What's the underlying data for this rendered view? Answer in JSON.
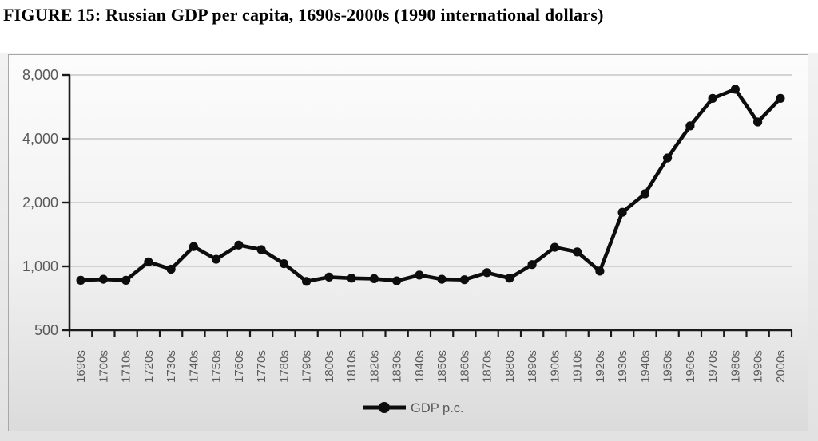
{
  "title": "FIGURE 15: Russian GDP per capita, 1690s-2000s (1990 international dollars)",
  "chart_data": {
    "type": "line",
    "title": "FIGURE 15: Russian GDP per capita, 1690s-2000s (1990 international dollars)",
    "xlabel": "",
    "ylabel": "",
    "y_scale": "log2",
    "ylim": [
      500,
      8000
    ],
    "y_ticks": [
      500,
      1000,
      2000,
      4000,
      8000
    ],
    "y_tick_labels": [
      "500",
      "1,000",
      "2,000",
      "4,000",
      "8,000"
    ],
    "grid": "horizontal",
    "legend_position": "bottom-center",
    "categories": [
      "1690s",
      "1700s",
      "1710s",
      "1720s",
      "1730s",
      "1740s",
      "1750s",
      "1760s",
      "1770s",
      "1780s",
      "1790s",
      "1800s",
      "1810s",
      "1820s",
      "1830s",
      "1840s",
      "1850s",
      "1860s",
      "1870s",
      "1880s",
      "1890s",
      "1900s",
      "1910s",
      "1920s",
      "1930s",
      "1940s",
      "1950s",
      "1960s",
      "1970s",
      "1980s",
      "1990s",
      "2000s"
    ],
    "series": [
      {
        "name": "GDP p.c.",
        "values": [
          860,
          870,
          860,
          1050,
          970,
          1240,
          1080,
          1260,
          1200,
          1030,
          850,
          890,
          880,
          875,
          855,
          910,
          870,
          865,
          935,
          880,
          1020,
          1230,
          1170,
          950,
          1800,
          2200,
          3250,
          4600,
          6200,
          6850,
          4800,
          6200
        ]
      }
    ],
    "colors": {
      "line": "#0d0d0d",
      "marker": "#0d0d0d",
      "axis": "#1a1a1a",
      "gridline": "#c6c6c6",
      "tick_label": "#595959",
      "legend_text": "#595959"
    }
  }
}
